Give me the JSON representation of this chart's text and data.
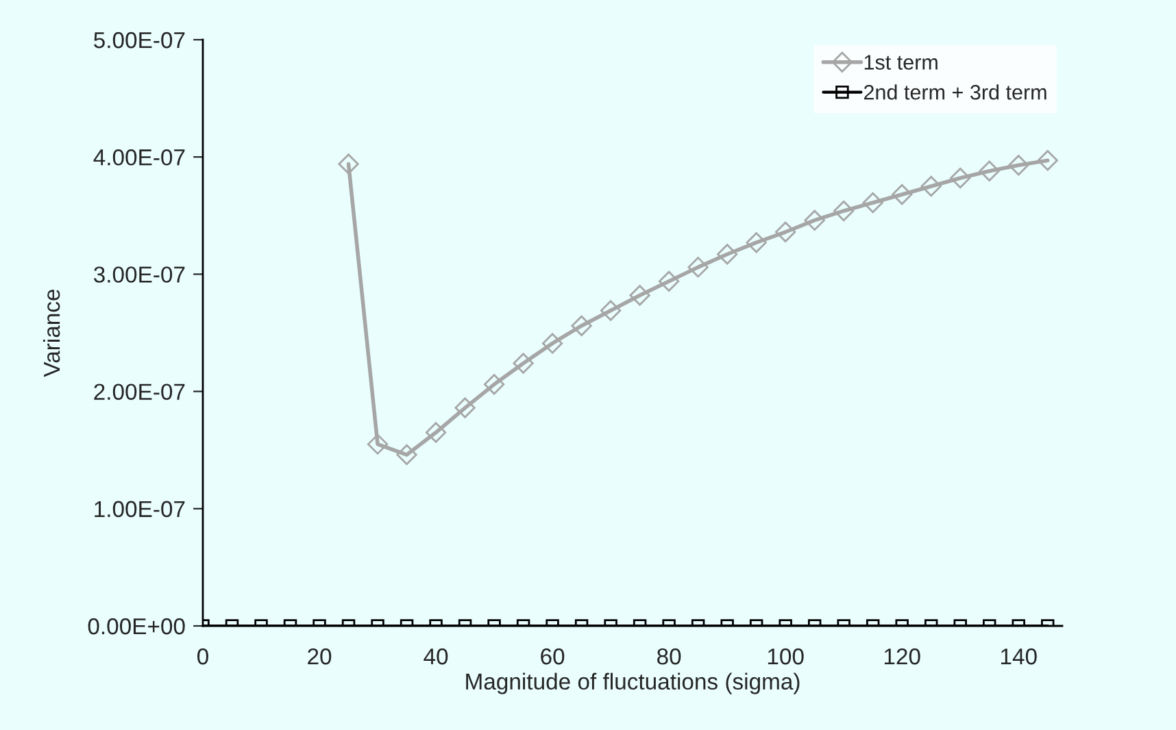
{
  "chart_data": {
    "type": "line",
    "xlabel": "Magnitude of fluctuations (sigma)",
    "ylabel": "Variance",
    "xlim": [
      0,
      147.5
    ],
    "xticks": [
      0,
      20,
      40,
      60,
      80,
      100,
      120,
      140
    ],
    "ylim": [
      0,
      5e-07
    ],
    "yticks": [
      {
        "value": 0,
        "label": "0.00E+00"
      },
      {
        "value": 1e-07,
        "label": "1.00E-07"
      },
      {
        "value": 2e-07,
        "label": "2.00E-07"
      },
      {
        "value": 3e-07,
        "label": "3.00E-07"
      },
      {
        "value": 4e-07,
        "label": "4.00E-07"
      },
      {
        "value": 5e-07,
        "label": "5.00E-07"
      }
    ],
    "grid": false,
    "legend": "top right",
    "series": [
      {
        "name": "1st term",
        "color": "#a6a6a6",
        "marker": "diamond",
        "x": [
          25,
          30,
          35,
          40,
          45,
          50,
          55,
          60,
          65,
          70,
          75,
          80,
          85,
          90,
          95,
          100,
          105,
          110,
          115,
          120,
          125,
          130,
          135,
          140,
          145
        ],
        "values": [
          3.94e-07,
          1.55e-07,
          1.46e-07,
          1.65e-07,
          1.86e-07,
          2.06e-07,
          2.24e-07,
          2.41e-07,
          2.56e-07,
          2.69e-07,
          2.82e-07,
          2.94e-07,
          3.06e-07,
          3.17e-07,
          3.27e-07,
          3.36e-07,
          3.46e-07,
          3.54e-07,
          3.61e-07,
          3.68e-07,
          3.75e-07,
          3.82e-07,
          3.88e-07,
          3.93e-07,
          3.97e-07
        ]
      },
      {
        "name": "2nd term + 3rd term",
        "color": "#000000",
        "marker": "square",
        "x": [
          0,
          5,
          10,
          15,
          20,
          25,
          30,
          35,
          40,
          45,
          50,
          55,
          60,
          65,
          70,
          75,
          80,
          85,
          90,
          95,
          100,
          105,
          110,
          115,
          120,
          125,
          130,
          135,
          140,
          145
        ],
        "values": [
          0,
          0,
          0,
          0,
          0,
          0,
          0,
          0,
          0,
          0,
          0,
          0,
          0,
          0,
          0,
          0,
          0,
          0,
          0,
          0,
          0,
          0,
          0,
          0,
          0,
          0,
          0,
          0,
          0,
          0
        ]
      }
    ]
  }
}
